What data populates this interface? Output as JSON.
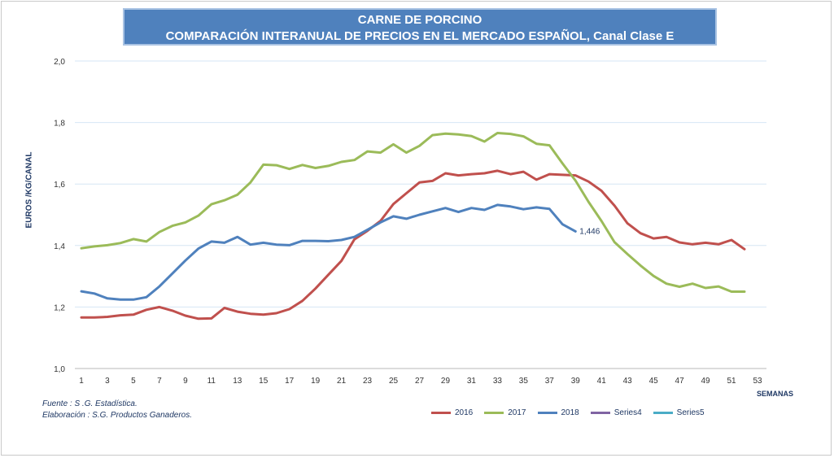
{
  "chart_data": {
    "type": "line",
    "title": "CARNE DE PORCINO",
    "subtitle": "COMPARACIÓN INTERANUAL DE PRECIOS EN EL MERCADO ESPAÑOL, Canal Clase E",
    "ylabel": "EUROS /KG/CANAL",
    "xlabel": "SEMANAS",
    "ylim": [
      1.0,
      2.0
    ],
    "xlim": [
      1,
      53
    ],
    "y_ticks": [
      "2,0",
      "1,8",
      "1,6",
      "1,4",
      "1,2",
      "1,0"
    ],
    "x_ticks": [
      "1",
      "3",
      "5",
      "7",
      "9",
      "11",
      "13",
      "15",
      "17",
      "19",
      "21",
      "23",
      "25",
      "27",
      "29",
      "31",
      "33",
      "35",
      "37",
      "39",
      "41",
      "43",
      "45",
      "47",
      "49",
      "51",
      "53"
    ],
    "grid": "horizontal",
    "legend_position": "bottom",
    "series": [
      {
        "name": "2016",
        "color": "#c0504d",
        "values": [
          1.166,
          1.166,
          1.168,
          1.173,
          1.175,
          1.191,
          1.2,
          1.188,
          1.172,
          1.162,
          1.163,
          1.197,
          1.185,
          1.178,
          1.175,
          1.18,
          1.193,
          1.22,
          1.26,
          1.305,
          1.35,
          1.42,
          1.448,
          1.48,
          1.535,
          1.57,
          1.605,
          1.61,
          1.635,
          1.628,
          1.632,
          1.635,
          1.643,
          1.632,
          1.64,
          1.614,
          1.632,
          1.63,
          1.628,
          1.608,
          1.578,
          1.53,
          1.472,
          1.44,
          1.423,
          1.428,
          1.41,
          1.404,
          1.409,
          1.404,
          1.418,
          1.388
        ]
      },
      {
        "name": "2017",
        "color": "#9bbb59",
        "values": [
          1.391,
          1.397,
          1.401,
          1.408,
          1.421,
          1.413,
          1.444,
          1.464,
          1.475,
          1.497,
          1.534,
          1.547,
          1.565,
          1.605,
          1.663,
          1.661,
          1.649,
          1.662,
          1.652,
          1.659,
          1.672,
          1.678,
          1.706,
          1.702,
          1.729,
          1.702,
          1.724,
          1.759,
          1.764,
          1.761,
          1.756,
          1.738,
          1.766,
          1.763,
          1.755,
          1.731,
          1.726,
          1.667,
          1.611,
          1.542,
          1.48,
          1.411,
          1.372,
          1.335,
          1.301,
          1.276,
          1.266,
          1.276,
          1.262,
          1.267,
          1.25,
          1.25
        ]
      },
      {
        "name": "2018",
        "color": "#4f81bd",
        "values": [
          1.251,
          1.244,
          1.228,
          1.224,
          1.224,
          1.232,
          1.267,
          1.309,
          1.351,
          1.39,
          1.413,
          1.409,
          1.428,
          1.403,
          1.409,
          1.403,
          1.401,
          1.415,
          1.415,
          1.414,
          1.418,
          1.428,
          1.451,
          1.475,
          1.495,
          1.487,
          1.5,
          1.511,
          1.522,
          1.509,
          1.522,
          1.516,
          1.532,
          1.527,
          1.518,
          1.524,
          1.519,
          1.469,
          1.446
        ]
      },
      {
        "name": "Series4",
        "color": "#8064a2",
        "values": []
      },
      {
        "name": "Series5",
        "color": "#4bacc6",
        "values": []
      }
    ],
    "annotations": [
      {
        "series": "2018",
        "week": 39,
        "text": "1,446"
      }
    ]
  },
  "source": {
    "line1": "Fuente :  S .G. Estadística.",
    "line2": "Elaboración : S.G. Productos Ganaderos."
  }
}
